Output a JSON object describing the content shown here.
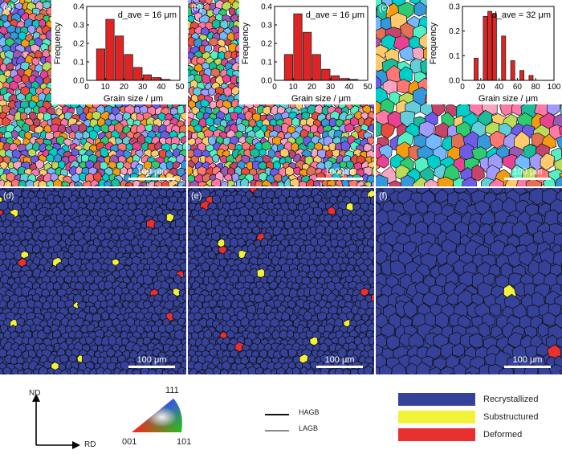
{
  "panels": [
    {
      "label": "(a)",
      "scale": "100 μm",
      "type": "ipf"
    },
    {
      "label": "(b)",
      "scale": "100 μm",
      "type": "ipf"
    },
    {
      "label": "(c)",
      "scale": "100 μm",
      "type": "ipf"
    },
    {
      "label": "(d)",
      "scale": "100 μm",
      "type": "rex"
    },
    {
      "label": "(e)",
      "scale": "100 μm",
      "type": "rex"
    },
    {
      "label": "(f)",
      "scale": "100 μm",
      "type": "rex"
    }
  ],
  "chart_data": [
    {
      "type": "bar",
      "annotation": "d_ave = 16 μm",
      "xlabel": "Grain size / μm",
      "ylabel": "Frequency",
      "xlim": [
        0,
        50
      ],
      "ylim": [
        0,
        0.4
      ],
      "xticks": [
        0,
        10,
        20,
        30,
        40,
        50
      ],
      "yticks": [
        0.0,
        0.1,
        0.2,
        0.3,
        0.4
      ],
      "x": [
        7.5,
        12.5,
        17.5,
        22.5,
        27.5,
        32.5,
        37.5,
        42.5
      ],
      "values": [
        0.17,
        0.33,
        0.24,
        0.14,
        0.07,
        0.03,
        0.015,
        0.005
      ]
    },
    {
      "type": "bar",
      "annotation": "d_ave = 16 μm",
      "xlabel": "Grain size / μm",
      "ylabel": "Frequency",
      "xlim": [
        0,
        50
      ],
      "ylim": [
        0,
        0.4
      ],
      "xticks": [
        0,
        10,
        20,
        30,
        40,
        50
      ],
      "yticks": [
        0.0,
        0.1,
        0.2,
        0.3,
        0.4
      ],
      "x": [
        7.5,
        12.5,
        17.5,
        22.5,
        27.5,
        32.5,
        37.5,
        42.5
      ],
      "values": [
        0.14,
        0.36,
        0.26,
        0.14,
        0.06,
        0.025,
        0.01,
        0.005
      ]
    },
    {
      "type": "bar",
      "annotation": "d_ave = 32 μm",
      "xlabel": "Grain size / μm",
      "ylabel": "Frequency",
      "xlim": [
        0,
        100
      ],
      "ylim": [
        0,
        0.3
      ],
      "xticks": [
        0,
        20,
        40,
        60,
        80,
        100
      ],
      "yticks": [
        0.0,
        0.1,
        0.2,
        0.3
      ],
      "x": [
        15,
        25,
        30,
        35,
        45,
        55,
        65,
        75
      ],
      "values": [
        0.09,
        0.26,
        0.28,
        0.27,
        0.18,
        0.08,
        0.04,
        0.02
      ]
    }
  ],
  "legend": {
    "axes": {
      "nd": "ND",
      "rd": "RD"
    },
    "triangle": {
      "top": "111",
      "left": "001",
      "right": "101"
    },
    "boundaries": [
      {
        "label": "HAGB",
        "color": "#111111"
      },
      {
        "label": "LAGB",
        "color": "#888888"
      }
    ],
    "fractions": [
      {
        "label": "Recrystallized",
        "color": "#36429a"
      },
      {
        "label": "Substructured",
        "color": "#f2f23a"
      },
      {
        "label": "Deformed",
        "color": "#e83030"
      }
    ]
  },
  "colors": {
    "ipf_palette": [
      "#e74c3c",
      "#f39c12",
      "#2ecc71",
      "#3498db",
      "#9b59b6",
      "#e84393",
      "#1abc9c",
      "#fd79a8",
      "#00cec9",
      "#6c5ce7",
      "#fdcb6e",
      "#e17055",
      "#74b9ff",
      "#55efc4",
      "#a29bfe",
      "#ff7675",
      "#badc58",
      "#f8a5c2",
      "#63cdda",
      "#c44569"
    ],
    "recrystallized": "#36429a",
    "substructured": "#f2f23a",
    "deformed": "#e83030"
  }
}
